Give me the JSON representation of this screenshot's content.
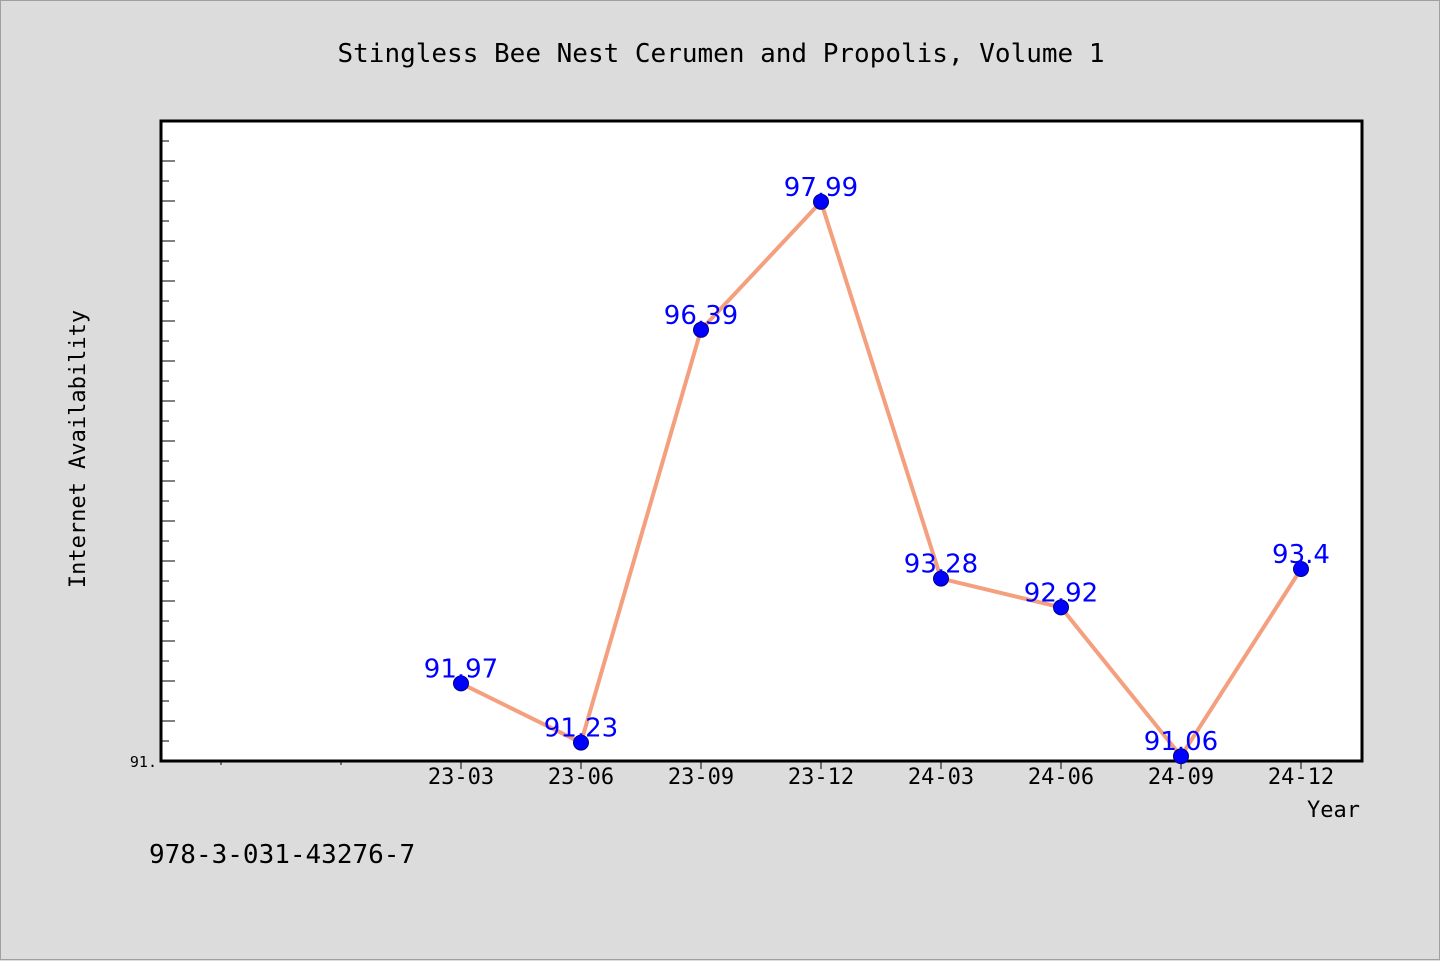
{
  "chart_data": {
    "type": "line",
    "title": "Stingless Bee Nest Cerumen and Propolis, Volume 1",
    "xlabel": "Year",
    "ylabel": "Internet Availability",
    "categories": [
      "23-03",
      "23-06",
      "23-09",
      "23-12",
      "24-03",
      "24-06",
      "24-09",
      "24-12"
    ],
    "series": [
      {
        "values": [
          91.97,
          91.23,
          96.39,
          97.99,
          93.28,
          92.92,
          91.06,
          93.4
        ]
      }
    ],
    "data_labels": [
      "91.97",
      "91.23",
      "96.39",
      "97.99",
      "93.28",
      "92.92",
      "91.06",
      "93.4"
    ],
    "y_tick_labels": [
      "91."
    ],
    "ylim": [
      91.0,
      99.0
    ],
    "grid": false,
    "colors": {
      "line": "#f4a07e",
      "marker": "#0000ff",
      "label": "#0000ff",
      "plot_bg": "#ffffff",
      "page_bg": "#dcdcdc"
    }
  },
  "footer": {
    "isbn": "978-3-031-43276-7"
  }
}
